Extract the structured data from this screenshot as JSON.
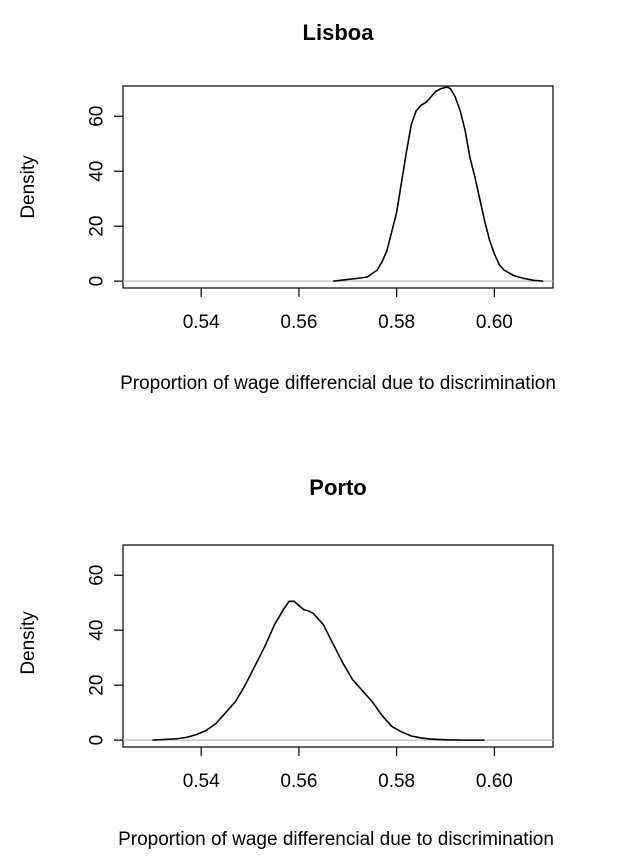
{
  "chart_data": [
    {
      "type": "line",
      "title": "Lisboa",
      "xlabel": "Proportion of wage differencial due to discrimination",
      "ylabel": "Density",
      "xlim": [
        0.524,
        0.612
      ],
      "ylim": [
        -2.5,
        71
      ],
      "x_ticks": [
        0.54,
        0.56,
        0.58,
        0.6
      ],
      "x_tick_labels": [
        "0.54",
        "0.56",
        "0.58",
        "0.60"
      ],
      "y_ticks": [
        0,
        20,
        40,
        60
      ],
      "y_tick_labels": [
        "0",
        "20",
        "40",
        "60"
      ],
      "baseline": 0,
      "baseline_xrange": [
        0.524,
        0.612
      ],
      "grid": false,
      "series": [
        {
          "x": [
            0.567,
            0.57,
            0.572,
            0.574,
            0.576,
            0.577,
            0.578,
            0.579,
            0.58,
            0.581,
            0.582,
            0.583,
            0.584,
            0.585,
            0.586,
            0.587,
            0.588,
            0.589,
            0.59,
            0.5905,
            0.591,
            0.592,
            0.593,
            0.594,
            0.595,
            0.596,
            0.597,
            0.598,
            0.599,
            0.6,
            0.601,
            0.602,
            0.604,
            0.606,
            0.608,
            0.61
          ],
          "y": [
            0,
            0.6,
            1.0,
            1.5,
            4,
            7,
            11,
            18,
            25,
            36,
            47,
            57,
            62,
            64,
            65,
            67,
            69,
            70,
            70.5,
            70.5,
            70,
            67,
            62,
            55,
            45,
            38,
            30,
            22,
            15,
            10,
            6,
            4,
            2,
            1,
            0.3,
            0
          ]
        }
      ]
    },
    {
      "type": "line",
      "title": "Porto",
      "xlabel": "Proportion of wage differencial due to discrimination",
      "ylabel": "Density",
      "xlim": [
        0.524,
        0.612
      ],
      "ylim": [
        -2.5,
        71
      ],
      "x_ticks": [
        0.54,
        0.56,
        0.58,
        0.6
      ],
      "x_tick_labels": [
        "0.54",
        "0.56",
        "0.58",
        "0.60"
      ],
      "y_ticks": [
        0,
        20,
        40,
        60
      ],
      "y_tick_labels": [
        "0",
        "20",
        "40",
        "60"
      ],
      "baseline": 0,
      "baseline_xrange": [
        0.524,
        0.612
      ],
      "grid": false,
      "series": [
        {
          "x": [
            0.53,
            0.533,
            0.535,
            0.537,
            0.539,
            0.541,
            0.543,
            0.545,
            0.547,
            0.549,
            0.551,
            0.553,
            0.555,
            0.557,
            0.558,
            0.559,
            0.56,
            0.561,
            0.562,
            0.563,
            0.565,
            0.567,
            0.569,
            0.571,
            0.573,
            0.575,
            0.577,
            0.579,
            0.581,
            0.583,
            0.585,
            0.587,
            0.59,
            0.594,
            0.598
          ],
          "y": [
            0,
            0.3,
            0.5,
            1,
            2,
            3.5,
            6,
            10,
            14,
            20,
            27,
            34,
            42,
            48,
            50.5,
            50.5,
            49,
            47.5,
            47,
            46,
            42,
            35,
            28,
            22,
            18,
            14,
            9,
            5,
            3,
            1.5,
            0.8,
            0.4,
            0.1,
            0,
            0
          ]
        }
      ]
    }
  ]
}
